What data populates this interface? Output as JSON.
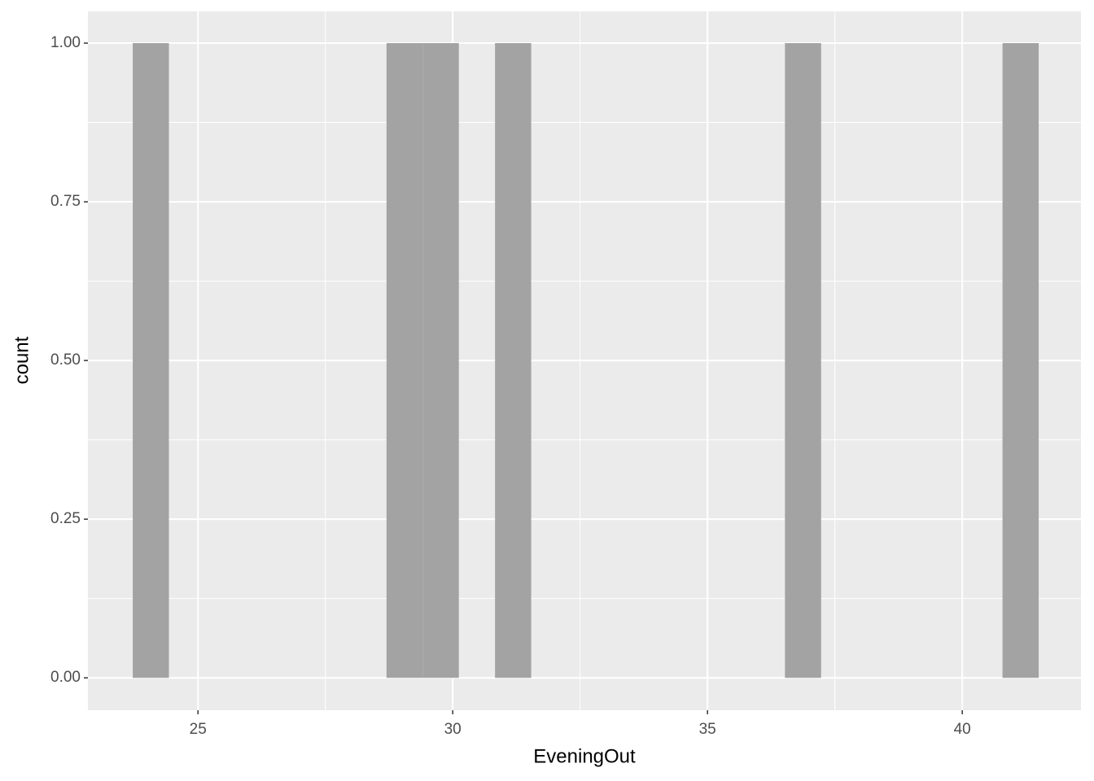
{
  "chart_data": {
    "type": "histogram",
    "x_label": "EveningOut",
    "y_label": "count",
    "bins": [
      23.72,
      24.43,
      25.14,
      25.85,
      26.56,
      27.28,
      27.99,
      28.7,
      29.41,
      30.12,
      30.83,
      31.54,
      32.25,
      32.97,
      33.68,
      34.39,
      35.1,
      35.81,
      36.52,
      37.23,
      37.94,
      38.66,
      39.37,
      40.08,
      40.79,
      41.5
    ],
    "values": [
      1,
      0,
      0,
      0,
      0,
      0,
      0,
      1,
      1,
      0,
      1,
      0,
      0,
      0,
      0,
      0,
      0,
      0,
      1,
      0,
      0,
      0,
      0,
      0,
      1
    ],
    "color": "#a3a3a3",
    "xlim": [
      22.84,
      42.33
    ],
    "ylim": [
      -0.051,
      1.05
    ],
    "xticks": [
      25,
      30,
      35,
      40
    ],
    "yticks": [
      {
        "value": 0,
        "label": "0.00"
      },
      {
        "value": 0.25,
        "label": "0.25"
      },
      {
        "value": 0.5,
        "label": "0.50"
      },
      {
        "value": 0.75,
        "label": "0.75"
      },
      {
        "value": 1,
        "label": "1.00"
      }
    ],
    "grid": true
  }
}
